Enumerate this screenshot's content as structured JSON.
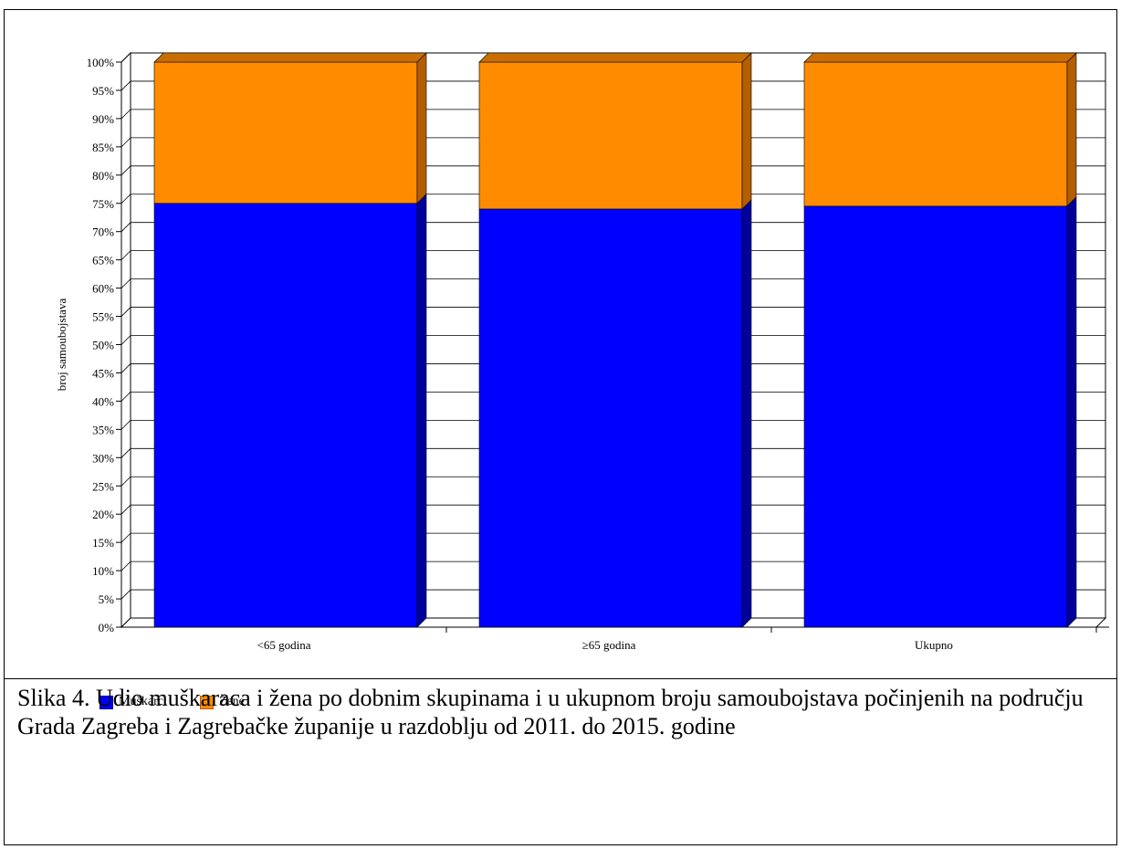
{
  "chart_data": {
    "type": "bar",
    "stacked": true,
    "percent": true,
    "categories": [
      "<65 godina",
      "≥65 godina",
      "Ukupno"
    ],
    "series": [
      {
        "name": "Muškarci",
        "values": [
          75,
          74,
          74.5
        ],
        "color": "#0000ff"
      },
      {
        "name": "Žene",
        "values": [
          25,
          26,
          25.5
        ],
        "color": "#ff8c00"
      }
    ],
    "ylabel": "broj samoubojstava",
    "xlabel": "",
    "ylim": [
      0,
      100
    ],
    "yticks": [
      "0%",
      "5%",
      "10%",
      "15%",
      "20%",
      "25%",
      "30%",
      "35%",
      "40%",
      "45%",
      "50%",
      "55%",
      "60%",
      "65%",
      "70%",
      "75%",
      "80%",
      "85%",
      "90%",
      "95%",
      "100%"
    ],
    "grid": true,
    "legend": "bottom-left",
    "style": "3d"
  },
  "caption": "Slika 4. Udio muškaraca i žena po dobnim skupinama i u ukupnom broju samoubojstava počinjenih na području Grada Zagreba i Zagrebačke županije u razdoblju od 2011. do 2015. godine"
}
